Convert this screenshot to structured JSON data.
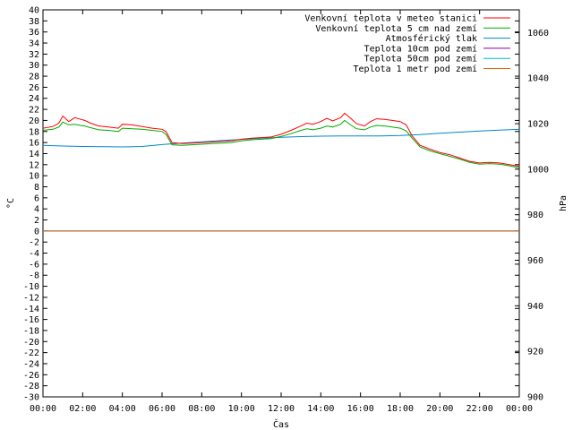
{
  "chart_data": {
    "type": "line",
    "xlabel": "Čas",
    "ylabel_left": "°C",
    "ylabel_right": "hPa",
    "x_ticks": [
      "00:00",
      "02:00",
      "04:00",
      "06:00",
      "08:00",
      "10:00",
      "12:00",
      "14:00",
      "16:00",
      "18:00",
      "20:00",
      "22:00",
      "00:00"
    ],
    "xlim": [
      0,
      24
    ],
    "ylim_left": [
      -30,
      40
    ],
    "ylim_right": [
      900,
      1070
    ],
    "y_ticks_left_step": 2,
    "y_ticks_right": [
      900,
      920,
      940,
      960,
      980,
      1000,
      1020,
      1040,
      1060
    ],
    "legend_position": "top-right",
    "grid": false,
    "series": [
      {
        "name": "Venkovní teplota v meteo stanici",
        "axis": "left",
        "color": "#ff0000",
        "x": [
          0,
          0.5,
          0.8,
          1.0,
          1.3,
          1.6,
          1.9,
          2.1,
          2.4,
          2.8,
          3.3,
          3.8,
          4.0,
          4.5,
          5.0,
          5.5,
          6.0,
          6.2,
          6.5,
          7.0,
          7.5,
          8.0,
          8.5,
          9.0,
          9.5,
          10.0,
          10.5,
          11.0,
          11.5,
          12.0,
          12.5,
          13.0,
          13.3,
          13.6,
          14.0,
          14.3,
          14.6,
          15.0,
          15.2,
          15.5,
          15.8,
          16.2,
          16.5,
          16.8,
          17.2,
          17.6,
          18.0,
          18.3,
          18.6,
          19.0,
          19.5,
          20.0,
          20.5,
          21.0,
          21.5,
          22.0,
          22.5,
          23.0,
          23.5,
          24.0
        ],
        "y": [
          18.6,
          18.9,
          19.5,
          20.8,
          19.8,
          20.5,
          20.2,
          20.0,
          19.5,
          19.0,
          18.8,
          18.6,
          19.3,
          19.2,
          18.9,
          18.6,
          18.4,
          18.0,
          16.0,
          15.8,
          15.9,
          16.0,
          16.1,
          16.2,
          16.3,
          16.6,
          16.8,
          16.9,
          17.0,
          17.5,
          18.2,
          19.0,
          19.5,
          19.3,
          19.8,
          20.4,
          19.9,
          20.5,
          21.3,
          20.4,
          19.4,
          19.0,
          19.8,
          20.3,
          20.2,
          20.0,
          19.8,
          19.2,
          17.2,
          15.5,
          14.8,
          14.2,
          13.8,
          13.2,
          12.6,
          12.3,
          12.4,
          12.3,
          12.0,
          11.7
        ]
      },
      {
        "name": "Venkovní teplota 5 cm nad zemí",
        "axis": "left",
        "color": "#00aa00",
        "x": [
          0,
          0.5,
          0.8,
          1.0,
          1.3,
          1.6,
          1.9,
          2.1,
          2.4,
          2.8,
          3.3,
          3.8,
          4.0,
          4.5,
          5.0,
          5.5,
          6.0,
          6.2,
          6.5,
          7.0,
          7.5,
          8.0,
          8.5,
          9.0,
          9.5,
          10.0,
          10.5,
          11.0,
          11.5,
          12.0,
          12.5,
          13.0,
          13.3,
          13.6,
          14.0,
          14.3,
          14.6,
          15.0,
          15.2,
          15.5,
          15.8,
          16.2,
          16.5,
          16.8,
          17.2,
          17.6,
          18.0,
          18.3,
          18.6,
          19.0,
          19.5,
          20.0,
          20.5,
          21.0,
          21.5,
          22.0,
          22.5,
          23.0,
          23.5,
          24.0
        ],
        "y": [
          18.2,
          18.4,
          18.8,
          19.7,
          19.2,
          19.3,
          19.1,
          19.0,
          18.7,
          18.3,
          18.2,
          18.0,
          18.6,
          18.5,
          18.4,
          18.2,
          18.0,
          17.5,
          15.6,
          15.5,
          15.6,
          15.7,
          15.8,
          15.9,
          16.0,
          16.3,
          16.5,
          16.6,
          16.7,
          17.1,
          17.6,
          18.2,
          18.5,
          18.3,
          18.6,
          19.0,
          18.8,
          19.3,
          20.0,
          19.2,
          18.5,
          18.3,
          18.8,
          19.1,
          19.0,
          18.8,
          18.6,
          18.1,
          16.8,
          15.2,
          14.5,
          14.0,
          13.5,
          13.0,
          12.4,
          12.1,
          12.2,
          12.1,
          11.8,
          11.4
        ]
      },
      {
        "name": "Atmosférický tlak",
        "axis": "right",
        "color": "#0088cc",
        "x": [
          0,
          1,
          2,
          3,
          4,
          5,
          6,
          7,
          8,
          9,
          10,
          11,
          12,
          13,
          14,
          15,
          16,
          17,
          18,
          19,
          20,
          21,
          22,
          23,
          24
        ],
        "y": [
          1010.5,
          1010.2,
          1010.0,
          1009.9,
          1009.8,
          1010.0,
          1010.8,
          1011.5,
          1012.0,
          1012.6,
          1013.1,
          1013.6,
          1014.0,
          1014.3,
          1014.5,
          1014.6,
          1014.6,
          1014.6,
          1014.8,
          1015.2,
          1015.8,
          1016.3,
          1016.8,
          1017.2,
          1017.5
        ]
      },
      {
        "name": "Teplota 10cm pod zemí",
        "axis": "left",
        "color": "#8800aa",
        "x": [
          0,
          24
        ],
        "y": [
          0,
          0
        ]
      },
      {
        "name": "Teplota 50cm pod zemí",
        "axis": "left",
        "color": "#00bbcc",
        "x": [
          0,
          24
        ],
        "y": [
          0,
          0
        ]
      },
      {
        "name": "Teplota 1 metr pod zemí",
        "axis": "left",
        "color": "#dd6600",
        "x": [
          0,
          24
        ],
        "y": [
          0,
          0
        ]
      }
    ]
  }
}
